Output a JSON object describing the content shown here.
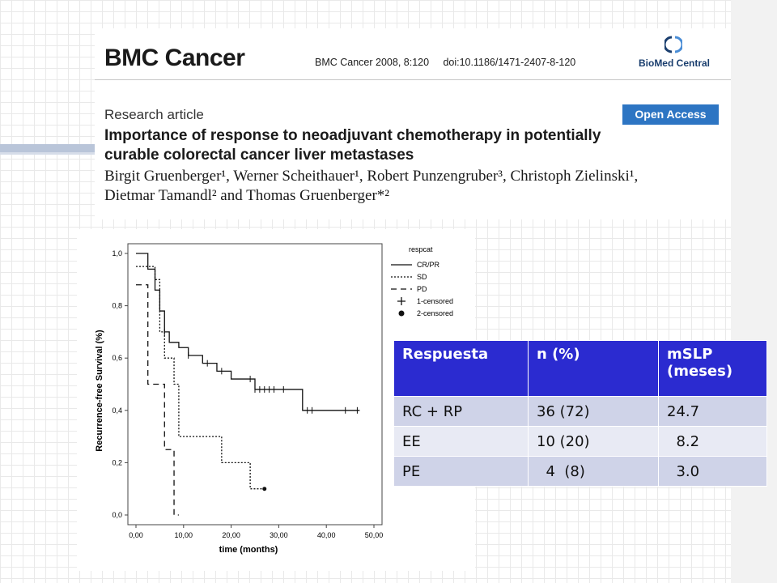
{
  "article": {
    "journal": "BMC Cancer",
    "citation": "BMC Cancer 2008, 8:120",
    "doi": "doi:10.1186/1471-2407-8-120",
    "publisher": "BioMed Central",
    "article_type": "Research article",
    "open_access": "Open Access",
    "title": "Importance of response to neoadjuvant chemotherapy in potentially curable colorectal cancer liver metastases",
    "authors": "Birgit Gruenberger¹, Werner Scheithauer¹, Robert Punzengruber³, Christoph Zielinski¹, Dietmar Tamandl² and Thomas Gruenberger*²"
  },
  "chart_data": {
    "type": "line",
    "step": true,
    "xlabel": "time (months)",
    "ylabel": "Recurrence-free Survival (%)",
    "xlim": [
      0,
      50
    ],
    "ylim": [
      0,
      1
    ],
    "x_ticks": [
      "0,00",
      "10,00",
      "20,00",
      "30,00",
      "40,00",
      "50,00"
    ],
    "y_ticks": [
      "0,0",
      "0,2",
      "0,4",
      "0,6",
      "0,8",
      "1,0"
    ],
    "legend_title": "respcat",
    "legend_position": "right",
    "legend": [
      "CR/PR",
      "SD",
      "PD",
      "1-censored",
      "2-censored"
    ],
    "series": [
      {
        "name": "CR/PR",
        "style": "solid",
        "x": [
          0,
          2.5,
          4,
          5,
          6,
          7,
          9,
          11,
          14,
          17,
          20,
          25,
          30,
          35,
          47
        ],
        "y": [
          1.0,
          0.94,
          0.86,
          0.78,
          0.7,
          0.66,
          0.64,
          0.61,
          0.58,
          0.55,
          0.52,
          0.48,
          0.48,
          0.4,
          0.4
        ],
        "censored_x": [
          6,
          11,
          15,
          18,
          24,
          25,
          26,
          27,
          28,
          29,
          31,
          36,
          37,
          44,
          46.5
        ]
      },
      {
        "name": "SD",
        "style": "dotted",
        "x": [
          0,
          4,
          5,
          6,
          8,
          9,
          18,
          24,
          27
        ],
        "y": [
          0.95,
          0.9,
          0.7,
          0.6,
          0.5,
          0.3,
          0.2,
          0.1,
          0.1
        ],
        "censored_x": [
          27
        ]
      },
      {
        "name": "PD",
        "style": "dashed",
        "x": [
          0,
          2.5,
          6,
          8,
          9
        ],
        "y": [
          0.88,
          0.5,
          0.25,
          0.0,
          0.0
        ],
        "censored_x": []
      }
    ]
  },
  "table": {
    "headers": [
      "Respuesta",
      "n (%)",
      "mSLP (meses)"
    ],
    "rows": [
      [
        "RC + RP",
        "36 (72)",
        "24.7"
      ],
      [
        "EE",
        "10 (20)",
        "  8.2"
      ],
      [
        "PE",
        "  4  (8)",
        "  3.0"
      ]
    ]
  },
  "colors": {
    "table_header": "#2b2bd0",
    "table_row_dark": "#cfd3e8",
    "table_row_light": "#e8eaf4",
    "open_access": "#2d75c3"
  }
}
